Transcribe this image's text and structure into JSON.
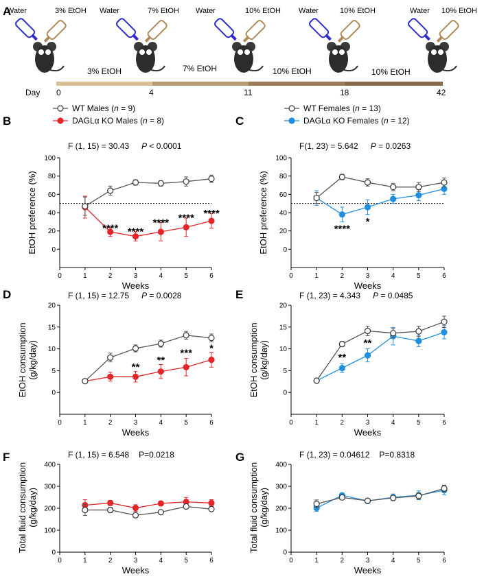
{
  "panel_a": {
    "letter": "A",
    "bottles": [
      {
        "water": "Water",
        "etoh": "3% EtOH"
      },
      {
        "water": "Water",
        "etoh": "7% EtOH"
      },
      {
        "water": "Water",
        "etoh": "10% EtOH"
      },
      {
        "water": "Water",
        "etoh": "10% EtOH"
      },
      {
        "water": "Water",
        "etoh": "10% EtOH"
      }
    ],
    "phases": [
      "3% EtOH",
      "7% EtOH",
      "10% EtOH",
      "10% EtOH"
    ],
    "day_label": "Day",
    "days": [
      "0",
      "4",
      "11",
      "18",
      "42"
    ],
    "colors": {
      "water_bottle": "#2b2bd0",
      "etoh_bottle": "#b08a5a",
      "timeline": "#9b7a55"
    }
  },
  "colors": {
    "wt": "#555555",
    "ko_male": "#e3262a",
    "ko_female": "#1f8fe0"
  },
  "chart_data": [
    {
      "id": "B",
      "letter": "B",
      "type": "line",
      "legend": [
        {
          "text": "WT Males  (",
          "n": "n",
          "rest": " = 9)"
        },
        {
          "text": "DAGLα KO Males  (",
          "n": "n",
          "rest": " = 8)"
        }
      ],
      "stat": {
        "f": "F (1, 15) = 30.43",
        "p": "P",
        "pv": " < 0.0001"
      },
      "xlabel": "Weeks",
      "ylabel": "EtOH preference (%)",
      "xlim": [
        0,
        6
      ],
      "ylim": [
        -20,
        100
      ],
      "xticks": [
        "0",
        "1",
        "2",
        "3",
        "4",
        "5",
        "6"
      ],
      "yticks": [
        "0",
        "20",
        "40",
        "60",
        "80",
        "100"
      ],
      "ytick_values": [
        0,
        20,
        40,
        60,
        80,
        100
      ],
      "reference_line": 50,
      "x": [
        1,
        2,
        3,
        4,
        5,
        6
      ],
      "series": [
        {
          "name": "WT Males",
          "group": "wt",
          "values": [
            47,
            64,
            73,
            72,
            74,
            77
          ],
          "err": [
            10,
            5,
            3,
            3,
            5,
            4
          ]
        },
        {
          "name": "DAGLα KO Males",
          "group": "ko_male",
          "values": [
            46,
            19,
            14,
            19,
            24,
            31
          ],
          "err": [
            12,
            5,
            5,
            10,
            10,
            8
          ]
        }
      ],
      "annotations": [
        {
          "x": 2,
          "y": 24,
          "text": "****"
        },
        {
          "x": 3,
          "y": 20,
          "text": "****"
        },
        {
          "x": 4,
          "y": 30,
          "text": "****"
        },
        {
          "x": 5,
          "y": 35,
          "text": "****"
        },
        {
          "x": 6,
          "y": 40,
          "text": "****"
        }
      ]
    },
    {
      "id": "C",
      "letter": "C",
      "type": "line",
      "legend": [
        {
          "text": "WT Females  (",
          "n": "n",
          "rest": " = 13)"
        },
        {
          "text": "DAGLα KO Females  (",
          "n": "n",
          "rest": " = 12)"
        }
      ],
      "stat": {
        "f": "F(1, 23) = 5.642",
        "p": "P",
        "pv": " = 0.0263"
      },
      "xlabel": "Weeks",
      "ylabel": "EtOH preference (%)",
      "xlim": [
        0,
        6
      ],
      "ylim": [
        -20,
        100
      ],
      "xticks": [
        "0",
        "1",
        "2",
        "3",
        "4",
        "5",
        "6"
      ],
      "yticks": [
        "0",
        "20",
        "40",
        "60",
        "80",
        "100"
      ],
      "ytick_values": [
        0,
        20,
        40,
        60,
        80,
        100
      ],
      "reference_line": 50,
      "x": [
        1,
        2,
        3,
        4,
        5,
        6
      ],
      "series": [
        {
          "name": "WT Females",
          "group": "wt",
          "values": [
            56,
            79,
            73,
            68,
            68,
            73
          ],
          "err": [
            6,
            3,
            4,
            4,
            5,
            5
          ]
        },
        {
          "name": "DAGLα KO Females",
          "group": "ko_female",
          "values": [
            56,
            38,
            46,
            55,
            59,
            66
          ],
          "err": [
            8,
            8,
            8,
            5,
            6,
            6
          ]
        }
      ],
      "annotations": [
        {
          "x": 2,
          "y": 23,
          "text": "****"
        },
        {
          "x": 3,
          "y": 31,
          "text": "*"
        }
      ]
    },
    {
      "id": "D",
      "letter": "D",
      "type": "line",
      "stat": {
        "f": "F (1, 15) = 12.75",
        "p": "P",
        "pv": " = 0.0028"
      },
      "xlabel": "Weeks",
      "ylabel": [
        "EtOH consumption",
        "(g/kg/day)"
      ],
      "xlim": [
        0,
        6
      ],
      "ylim": [
        -5,
        20
      ],
      "xticks": [
        "0",
        "1",
        "2",
        "3",
        "4",
        "5",
        "6"
      ],
      "yticks": [
        "0",
        "5",
        "10",
        "15",
        "20"
      ],
      "ytick_values": [
        0,
        5,
        10,
        15,
        20
      ],
      "x": [
        1,
        2,
        3,
        4,
        5,
        6
      ],
      "series": [
        {
          "name": "WT Males",
          "group": "wt",
          "values": [
            2.6,
            8.0,
            10.1,
            11.2,
            13.1,
            12.5
          ],
          "err": [
            0.4,
            1.0,
            0.8,
            0.8,
            0.9,
            0.9
          ]
        },
        {
          "name": "DAGLα KO Males",
          "group": "ko_male",
          "values": [
            2.6,
            3.6,
            3.6,
            4.8,
            5.8,
            7.5
          ],
          "err": [
            0.4,
            1.0,
            1.2,
            1.6,
            2.0,
            1.7
          ]
        }
      ],
      "annotations": [
        {
          "x": 3,
          "y": 6.0,
          "text": "**"
        },
        {
          "x": 4,
          "y": 7.6,
          "text": "**"
        },
        {
          "x": 5,
          "y": 9.2,
          "text": "***"
        },
        {
          "x": 6,
          "y": 10.3,
          "text": "*"
        }
      ]
    },
    {
      "id": "E",
      "letter": "E",
      "type": "line",
      "stat": {
        "f": "F (1, 23) = 4.343",
        "p": "P",
        "pv": " = 0.0485"
      },
      "xlabel": "Weeks",
      "ylabel": [
        "EtOH consumption",
        "(g/kg/day)"
      ],
      "xlim": [
        0,
        6
      ],
      "ylim": [
        -5,
        20
      ],
      "xticks": [
        "0",
        "1",
        "2",
        "3",
        "4",
        "5",
        "6"
      ],
      "yticks": [
        "0",
        "5",
        "10",
        "15",
        "20"
      ],
      "ytick_values": [
        0,
        5,
        10,
        15,
        20
      ],
      "x": [
        1,
        2,
        3,
        4,
        5,
        6
      ],
      "series": [
        {
          "name": "WT Females",
          "group": "wt",
          "values": [
            2.7,
            11.1,
            14.1,
            13.6,
            14.0,
            16.2
          ],
          "err": [
            0.3,
            0.6,
            1.1,
            1.0,
            1.2,
            1.3
          ]
        },
        {
          "name": "DAGLα KO Females",
          "group": "ko_female",
          "values": [
            2.7,
            5.6,
            8.5,
            12.9,
            11.8,
            13.8
          ],
          "err": [
            0.3,
            1.0,
            1.5,
            2.0,
            1.3,
            1.5
          ]
        }
      ],
      "annotations": [
        {
          "x": 2,
          "y": 8.2,
          "text": "**"
        },
        {
          "x": 3,
          "y": 11.5,
          "text": "**"
        }
      ]
    },
    {
      "id": "F",
      "letter": "F",
      "type": "line",
      "stat": {
        "f": "F (1, 15) = 6.548",
        "p": "",
        "pv": "P=0.0218"
      },
      "xlabel": "Weeks",
      "ylabel": [
        "Total fluid consumption",
        "(g/kg/day)"
      ],
      "xlim": [
        0,
        6
      ],
      "ylim": [
        0,
        400
      ],
      "xticks": [
        "0",
        "1",
        "2",
        "3",
        "4",
        "5",
        "6"
      ],
      "yticks": [
        "0",
        "100",
        "200",
        "300",
        "400"
      ],
      "ytick_values": [
        0,
        100,
        200,
        300,
        400
      ],
      "x": [
        1,
        2,
        3,
        4,
        5,
        6
      ],
      "series": [
        {
          "name": "WT Males",
          "group": "wt",
          "values": [
            192,
            192,
            168,
            182,
            208,
            196
          ],
          "err": [
            25,
            12,
            10,
            6,
            6,
            10
          ]
        },
        {
          "name": "DAGLα KO Males",
          "group": "ko_male",
          "values": [
            214,
            224,
            201,
            222,
            229,
            224
          ],
          "err": [
            25,
            12,
            15,
            10,
            20,
            15
          ]
        }
      ],
      "annotations": []
    },
    {
      "id": "G",
      "letter": "G",
      "type": "line",
      "stat": {
        "f": "F (1, 23) = 0.04612",
        "p": "",
        "pv": "P=0.8318"
      },
      "xlabel": "Weeks",
      "ylabel": [
        "Total fluid consumption",
        "(g/kg/day)"
      ],
      "xlim": [
        0,
        6
      ],
      "ylim": [
        0,
        400
      ],
      "xticks": [
        "0",
        "1",
        "2",
        "3",
        "4",
        "5",
        "6"
      ],
      "yticks": [
        "0",
        "100",
        "200",
        "300",
        "400"
      ],
      "ytick_values": [
        0,
        100,
        200,
        300,
        400
      ],
      "x": [
        1,
        2,
        3,
        4,
        5,
        6
      ],
      "series": [
        {
          "name": "WT Females",
          "group": "wt",
          "values": [
            220,
            249,
            234,
            247,
            256,
            290
          ],
          "err": [
            18,
            10,
            10,
            10,
            15,
            15
          ]
        },
        {
          "name": "DAGLα KO Females",
          "group": "ko_female",
          "values": [
            201,
            259,
            233,
            250,
            259,
            282
          ],
          "err": [
            15,
            10,
            10,
            15,
            20,
            20
          ]
        }
      ],
      "annotations": []
    }
  ]
}
